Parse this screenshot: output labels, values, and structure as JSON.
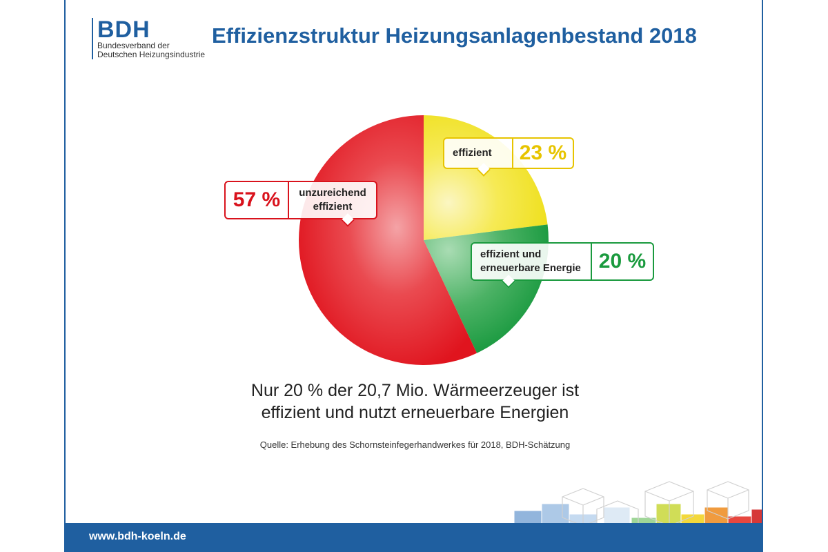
{
  "logo": {
    "mark": "BDH",
    "line1": "Bundesverband der",
    "line2": "Deutschen Heizungsindustrie"
  },
  "title": "Effizienzstruktur Heizungsanlagenbestand 2018",
  "chart_data": {
    "type": "pie",
    "title": "Effizienzstruktur Heizungsanlagenbestand 2018",
    "slices": [
      {
        "label": "effizient",
        "value": 23,
        "display": "23 %",
        "color": "#f0e12a"
      },
      {
        "label": "effizient und erneuerbare Energie",
        "value": 20,
        "display": "20 %",
        "color": "#159a3c"
      },
      {
        "label": "unzureichend effizient",
        "value": 57,
        "display": "57 %",
        "color": "#e3141e"
      }
    ],
    "callouts": {
      "effizient": {
        "line1": "effizient",
        "pct": "23 %",
        "color": "#e7c400"
      },
      "erneuerbar": {
        "line1": "effizient und",
        "line2": "erneuerbare Energie",
        "pct": "20 %",
        "color": "#1a9a3e"
      },
      "unzureichend": {
        "line1": "unzureichend",
        "line2": "effizient",
        "pct": "57 %",
        "color": "#d9121c"
      }
    }
  },
  "subtitle": {
    "line1": "Nur 20 % der 20,7 Mio. Wärmeerzeuger ist",
    "line2": "effizient und nutzt erneuerbare Energien"
  },
  "source": "Quelle: Erhebung des Schornsteinfegerhandwerkes für 2018, BDH-Schätzung",
  "footer": {
    "url": "www.bdh-koeln.de"
  },
  "colors": {
    "brand": "#1f5fa0"
  }
}
